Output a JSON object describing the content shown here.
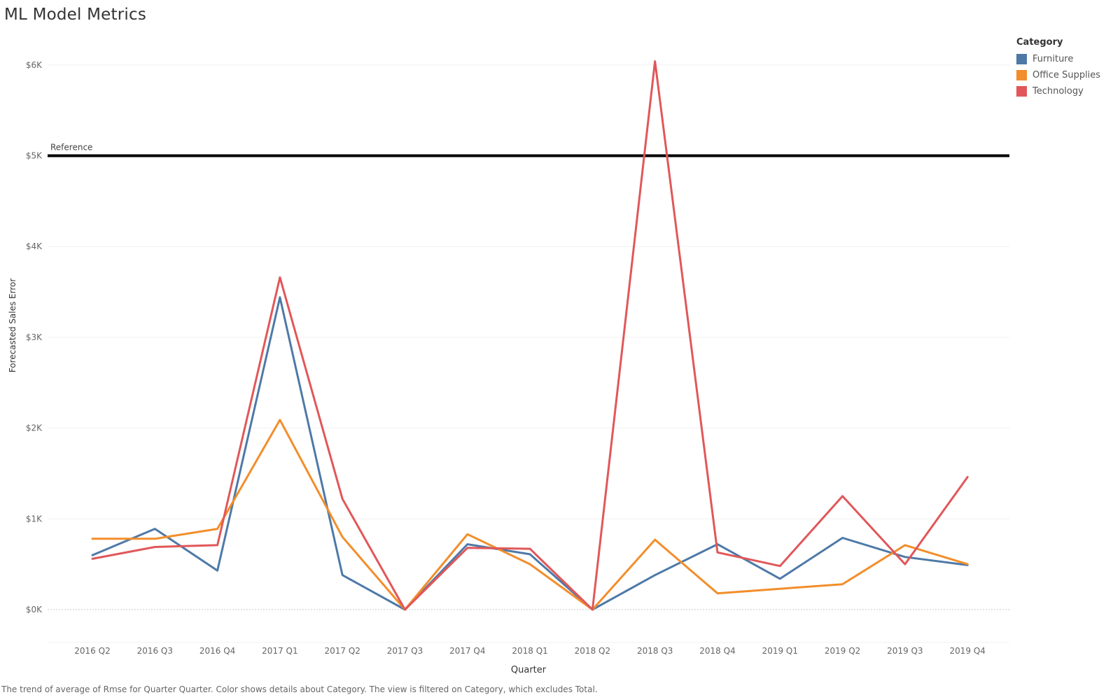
{
  "page": {
    "title": "ML Model Metrics",
    "caption": "The trend of average of Rmse for Quarter Quarter.  Color shows details about Category. The view is filtered on Category, which excludes Total."
  },
  "legend": {
    "title": "Category",
    "items": [
      {
        "label": "Furniture",
        "color": "#4e79a7"
      },
      {
        "label": "Office Supplies",
        "color": "#f28e2b"
      },
      {
        "label": "Technology",
        "color": "#e15759"
      }
    ]
  },
  "chart_data": {
    "type": "line",
    "title": "ML Model Metrics",
    "xlabel": "Quarter",
    "ylabel": "Forecasted Sales Error",
    "categories": [
      "2016 Q2",
      "2016 Q3",
      "2016 Q4",
      "2017 Q1",
      "2017 Q2",
      "2017 Q3",
      "2017 Q4",
      "2018 Q1",
      "2018 Q2",
      "2018 Q3",
      "2018 Q4",
      "2019 Q1",
      "2019 Q2",
      "2019 Q3",
      "2019 Q4"
    ],
    "ylim": [
      -300,
      6300
    ],
    "yticks": [
      0,
      1000,
      2000,
      3000,
      4000,
      5000,
      6000
    ],
    "ytick_labels": [
      "$0K",
      "$1K",
      "$2K",
      "$3K",
      "$4K",
      "$5K",
      "$6K"
    ],
    "grid": true,
    "legend_position": "top-right",
    "reference_line": {
      "label": "Reference",
      "value": 5000,
      "color": "#000000"
    },
    "series": [
      {
        "name": "Furniture",
        "color": "#4e79a7",
        "values": [
          600,
          890,
          430,
          3440,
          380,
          0,
          720,
          610,
          0,
          380,
          720,
          340,
          790,
          580,
          490
        ]
      },
      {
        "name": "Office Supplies",
        "color": "#f28e2b",
        "values": [
          780,
          780,
          890,
          2090,
          800,
          0,
          830,
          500,
          0,
          770,
          180,
          230,
          280,
          710,
          500
        ]
      },
      {
        "name": "Technology",
        "color": "#e15759",
        "values": [
          560,
          690,
          710,
          3660,
          1220,
          0,
          680,
          670,
          0,
          6040,
          630,
          480,
          1250,
          500,
          1460
        ]
      }
    ]
  }
}
